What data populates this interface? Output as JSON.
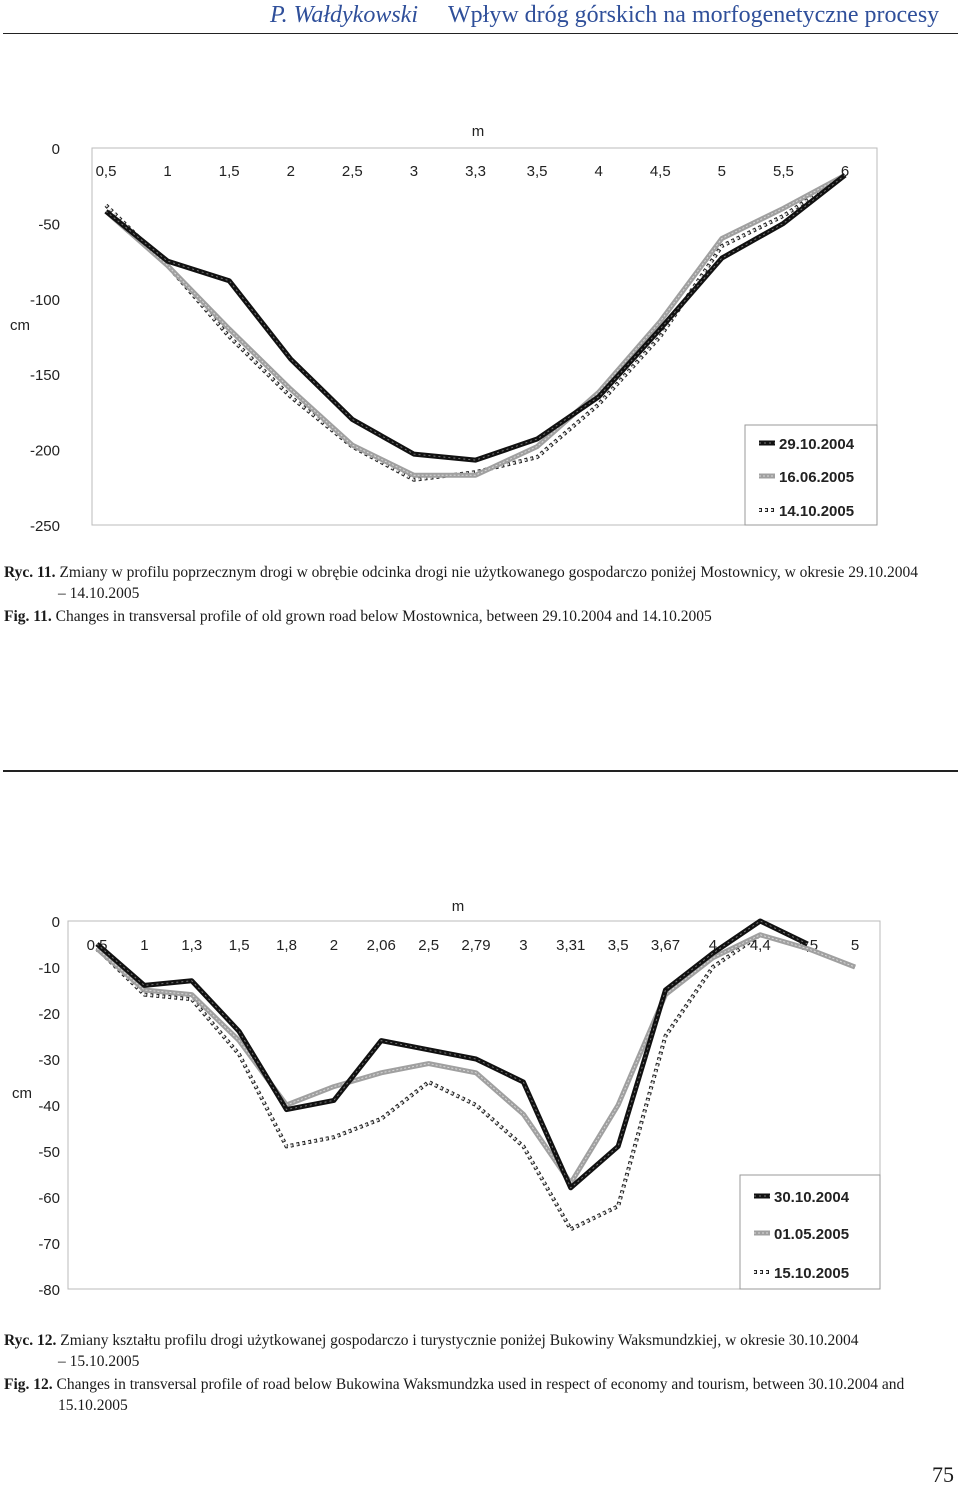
{
  "header": {
    "author": "P. Wałdykowski",
    "title": "Wpływ dróg górskich na morfogenetyczne procesy"
  },
  "chart_data": [
    {
      "type": "line",
      "id": "fig11",
      "title": "",
      "x_axis_label": "m",
      "y_axis_label": "cm",
      "categories": [
        "0,5",
        "1",
        "1,5",
        "2",
        "2,5",
        "3",
        "3,3",
        "3,5",
        "4",
        "4,5",
        "5",
        "5,5",
        "6"
      ],
      "ylim": [
        -250,
        0
      ],
      "yticks": [
        "0",
        "-50",
        "-100",
        "-150",
        "-200",
        "-250"
      ],
      "series": [
        {
          "name": "29.10.2004",
          "style": "black",
          "values": [
            -42,
            -75,
            -88,
            -140,
            -180,
            -203,
            -207,
            -193,
            -165,
            -120,
            -73,
            -50,
            -18
          ]
        },
        {
          "name": "16.06.2005",
          "style": "gray",
          "values": [
            -42,
            -78,
            -120,
            -160,
            -197,
            -217,
            -217,
            -198,
            -162,
            -115,
            -60,
            -40,
            -18
          ]
        },
        {
          "name": "14.10.2005",
          "style": "dotted",
          "values": [
            -38,
            -78,
            -125,
            -165,
            -198,
            -220,
            -215,
            -205,
            -170,
            -125,
            -65,
            -45,
            -18
          ]
        }
      ],
      "legend": [
        "29.10.2004",
        "16.06.2005",
        "14.10.2005"
      ]
    },
    {
      "type": "line",
      "id": "fig12",
      "title": "",
      "x_axis_label": "m",
      "y_axis_label": "cm",
      "categories": [
        "0,5",
        "1",
        "1,3",
        "1,5",
        "1,8",
        "2",
        "2,06",
        "2,5",
        "2,79",
        "3",
        "3,31",
        "3,5",
        "3,67",
        "4",
        "4,4",
        "4,5",
        "5"
      ],
      "ylim": [
        -80,
        0
      ],
      "yticks": [
        "0",
        "-10",
        "-20",
        "-30",
        "-40",
        "-50",
        "-60",
        "-70",
        "-80"
      ],
      "series": [
        {
          "name": "30.10.2004",
          "style": "black",
          "values": [
            -5,
            -14,
            -13,
            -24,
            -41,
            -39,
            -26,
            -28,
            -30,
            -35,
            -58,
            -49,
            -15,
            -7,
            0,
            -5,
            null
          ]
        },
        {
          "name": "01.05.2005",
          "style": "gray",
          "values": [
            -6,
            -15,
            -16,
            -26,
            -40,
            -36,
            -33,
            -31,
            -33,
            -42,
            -57,
            -40,
            -16,
            -8,
            -3,
            -6,
            -10
          ]
        },
        {
          "name": "15.10.2005",
          "style": "dotted",
          "values": [
            -6,
            -16,
            -17,
            -29,
            -49,
            -47,
            -43,
            -35,
            -40,
            -49,
            -67,
            -62,
            -25,
            -10,
            -3,
            -6,
            -10
          ]
        }
      ],
      "legend": [
        "30.10.2004",
        "01.05.2005",
        "15.10.2005"
      ]
    }
  ],
  "captions": {
    "fig11_pl_label": "Ryc. 11.",
    "fig11_pl_text": "Zmiany w profilu poprzecznym drogi w obrębie odcinka drogi nie użytkowanego gospodarczo poniżej Mostownicy, w okresie 29.10.2004",
    "fig11_pl_cont": "– 14.10.2005",
    "fig11_en_label": "Fig. 11.",
    "fig11_en_text": "Changes in transversal profile of old grown road below Mostownica, between 29.10.2004 and 14.10.2005",
    "fig12_pl_label": "Ryc. 12.",
    "fig12_pl_text": "Zmiany kształtu profilu drogi użytkowanej gospodarczo i turystycznie poniżej Bukowiny Waksmundzkiej, w okresie 30.10.2004",
    "fig12_pl_cont": "– 15.10.2005",
    "fig12_en_label": "Fig. 12.",
    "fig12_en_text": "Changes in transversal profile of road below Bukowina Waksmundzka used in respect of economy and tourism, between 30.10.2004 and",
    "fig12_en_cont": "15.10.2005"
  },
  "page_number": "75"
}
